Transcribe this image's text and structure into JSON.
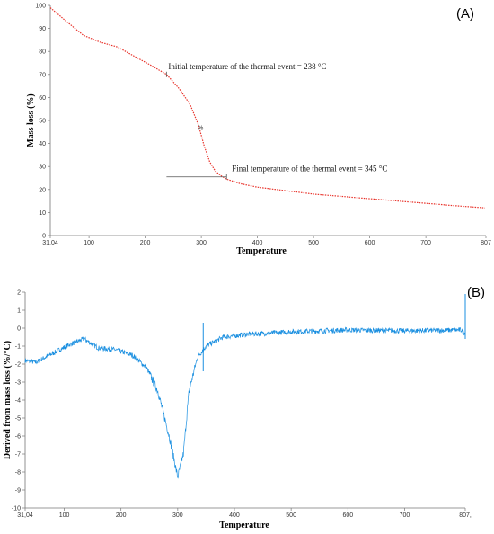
{
  "chart_data": [
    {
      "type": "line",
      "panel_label": "(A)",
      "xlabel": "Temperature",
      "ylabel": "Mass loss (%)",
      "xlim": [
        31.04,
        807
      ],
      "ylim": [
        0,
        100
      ],
      "x_ticks": [
        31.04,
        100,
        200,
        300,
        400,
        500,
        600,
        700,
        807
      ],
      "x_tick_labels": [
        "31,04",
        "100",
        "200",
        "300",
        "400",
        "500",
        "600",
        "700",
        "807"
      ],
      "y_ticks": [
        0,
        10,
        20,
        30,
        40,
        50,
        60,
        70,
        80,
        90,
        100
      ],
      "series": [
        {
          "color": "#e8322a",
          "style": "dotted",
          "x": [
            31.04,
            60,
            90,
            120,
            150,
            180,
            210,
            238,
            260,
            280,
            295,
            305,
            315,
            325,
            335,
            345,
            370,
            400,
            450,
            500,
            550,
            600,
            650,
            700,
            750,
            807
          ],
          "y": [
            99,
            93,
            87,
            84,
            82,
            78,
            74,
            70,
            64,
            57,
            48,
            39,
            32,
            28,
            26,
            24.5,
            22.5,
            21,
            19.5,
            18,
            17,
            16,
            15,
            14,
            13,
            12
          ]
        }
      ],
      "annotations": [
        {
          "text": "Initial temperature of the thermal event = 238 °C",
          "x": 238,
          "y": 70
        },
        {
          "text": "Final temperature of the thermal event = 345 °C",
          "x": 345,
          "y": 25.5
        },
        {
          "text": "%",
          "x": 300,
          "y": 47
        }
      ],
      "reference_line": {
        "x_start": 238,
        "x_end": 345,
        "y": 25.5
      }
    },
    {
      "type": "line",
      "panel_label": "(B)",
      "xlabel": "Temperature",
      "ylabel": "Derived from mass loss (%/°C)",
      "xlim": [
        31.04,
        807
      ],
      "ylim": [
        -10,
        2
      ],
      "x_ticks": [
        31.04,
        100,
        200,
        300,
        400,
        500,
        600,
        700,
        807
      ],
      "x_tick_labels": [
        "31,04",
        "100",
        "200",
        "300",
        "400",
        "500",
        "600",
        "700",
        "807,"
      ],
      "y_ticks": [
        -10,
        -9,
        -8,
        -7,
        -6,
        -5,
        -4,
        -3,
        -2,
        -1,
        0,
        1,
        2
      ],
      "series": [
        {
          "color": "#1a8fe0",
          "style": "noisy",
          "x": [
            31.04,
            50,
            80,
            110,
            135,
            160,
            190,
            220,
            245,
            265,
            285,
            300,
            310,
            320,
            335,
            350,
            380,
            420,
            500,
            600,
            700,
            800,
            807
          ],
          "y": [
            -1.8,
            -1.9,
            -1.4,
            -0.9,
            -0.6,
            -1.1,
            -1.2,
            -1.5,
            -2.2,
            -3.5,
            -6.0,
            -8.3,
            -7.0,
            -3.5,
            -1.6,
            -1.0,
            -0.5,
            -0.35,
            -0.2,
            -0.1,
            -0.15,
            -0.1,
            -0.3
          ]
        }
      ],
      "spikes": [
        {
          "x": 345,
          "low": -2.4,
          "high": 0.3
        },
        {
          "x": 807,
          "low": -0.6,
          "high": 1.9
        }
      ]
    }
  ]
}
